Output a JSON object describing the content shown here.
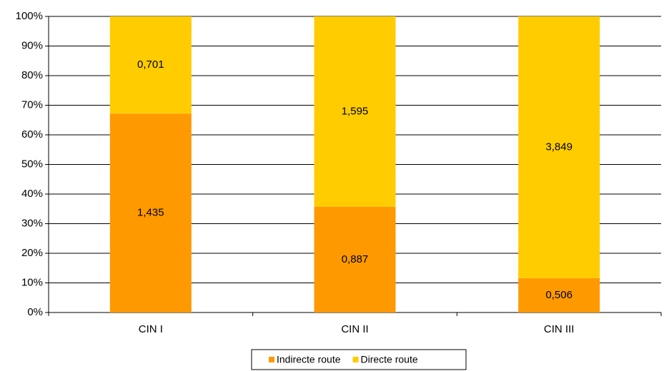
{
  "chart_data": {
    "type": "bar",
    "stacked": "percent",
    "categories": [
      "CIN I",
      "CIN II",
      "CIN III"
    ],
    "series": [
      {
        "name": "Indirecte route",
        "color": "#ff9900",
        "values": [
          1.435,
          0.887,
          0.506
        ],
        "value_labels": [
          "1,435",
          "0,887",
          "0,506"
        ]
      },
      {
        "name": "Directe route",
        "color": "#ffcc00",
        "values": [
          0.701,
          1.595,
          3.849
        ],
        "value_labels": [
          "0,701",
          "1,595",
          "3,849"
        ]
      }
    ],
    "ylim": [
      0,
      100
    ],
    "yticks": [
      {
        "value": 0,
        "label": "0%"
      },
      {
        "value": 10,
        "label": "10%"
      },
      {
        "value": 20,
        "label": "20%"
      },
      {
        "value": 30,
        "label": "30%"
      },
      {
        "value": 40,
        "label": "40%"
      },
      {
        "value": 50,
        "label": "50%"
      },
      {
        "value": 60,
        "label": "60%"
      },
      {
        "value": 70,
        "label": "70%"
      },
      {
        "value": 80,
        "label": "80%"
      },
      {
        "value": 90,
        "label": "90%"
      },
      {
        "value": 100,
        "label": "100%"
      }
    ],
    "grid": true,
    "legend": "bottom"
  }
}
